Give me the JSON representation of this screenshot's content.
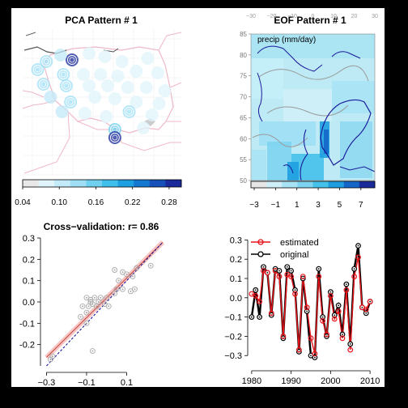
{
  "panels": {
    "pca": {
      "title": "PCA Pattern # 1",
      "colorbar_ticks": [
        "0.04",
        "0.10",
        "0.16",
        "0.22",
        "0.28"
      ],
      "colorbar_colors": [
        "#e8e8e8",
        "#e0f4fb",
        "#c2eaf8",
        "#9fdff5",
        "#6fd0f0",
        "#3fbfea",
        "#1e9fe0",
        "#1478d0",
        "#1650b8",
        "#1a2a9a"
      ]
    },
    "eof": {
      "title": "EOF Pattern # 1",
      "field_label": "precip (mm/day)",
      "lat_ticks": [
        "85",
        "80",
        "75",
        "70",
        "65",
        "60",
        "55",
        "50"
      ],
      "lon_ticks_top": [
        "−30",
        "−20",
        "−10",
        "0",
        "10",
        "20",
        "30"
      ],
      "colorbar_ticks": [
        "−3",
        "−1",
        "1",
        "3",
        "5",
        "7"
      ],
      "colorbar_colors": [
        "#e6e6e6",
        "#cfeff8",
        "#a8e3f5",
        "#7ed4f0",
        "#45c1ea",
        "#1e9ee0",
        "#1466c8",
        "#1a2a9a"
      ]
    },
    "cv": {
      "title": "Cross−validation: r= 0.86"
    },
    "ts": {
      "legend_estimated": "estimated",
      "legend_original": "original"
    }
  },
  "colors": {
    "estimated": "#e8141a",
    "original": "#000000",
    "scatter_point": "#a8a8a8",
    "fit_line": "#f4a0a0",
    "border_pink": "#f0b8c8",
    "coast_blue": "#1a1a9a"
  },
  "chart_data": [
    {
      "type": "scatter",
      "panel": "pca",
      "title": "PCA Pattern # 1",
      "description_type": "map with station loadings",
      "colorbar_range": [
        0.04,
        0.3
      ],
      "colorbar_ticks": [
        0.04,
        0.1,
        0.16,
        0.22,
        0.28
      ],
      "stations": [
        {
          "x": 17,
          "y": 53.9,
          "value": 0.29
        },
        {
          "x": 15.2,
          "y": 53.8,
          "value": 0.12
        },
        {
          "x": 16.2,
          "y": 54.2,
          "value": 0.1
        },
        {
          "x": 18.2,
          "y": 54.3,
          "value": 0.09
        },
        {
          "x": 19.3,
          "y": 54.1,
          "value": 0.08
        },
        {
          "x": 20.5,
          "y": 53.8,
          "value": 0.08
        },
        {
          "x": 22.3,
          "y": 54.0,
          "value": 0.07
        },
        {
          "x": 14.6,
          "y": 53.3,
          "value": 0.13
        },
        {
          "x": 16.4,
          "y": 53.0,
          "value": 0.12
        },
        {
          "x": 17.8,
          "y": 53.0,
          "value": 0.08
        },
        {
          "x": 19.0,
          "y": 53.0,
          "value": 0.08
        },
        {
          "x": 20.2,
          "y": 52.9,
          "value": 0.07
        },
        {
          "x": 21.5,
          "y": 53.2,
          "value": 0.08
        },
        {
          "x": 23.0,
          "y": 53.1,
          "value": 0.07
        },
        {
          "x": 15.0,
          "y": 52.4,
          "value": 0.12
        },
        {
          "x": 16.6,
          "y": 52.3,
          "value": 0.12
        },
        {
          "x": 18.2,
          "y": 52.3,
          "value": 0.08
        },
        {
          "x": 19.5,
          "y": 52.3,
          "value": 0.07
        },
        {
          "x": 20.9,
          "y": 52.2,
          "value": 0.08
        },
        {
          "x": 22.2,
          "y": 52.2,
          "value": 0.07
        },
        {
          "x": 23.5,
          "y": 52.0,
          "value": 0.07
        },
        {
          "x": 15.5,
          "y": 51.6,
          "value": 0.11
        },
        {
          "x": 16.9,
          "y": 51.3,
          "value": 0.12
        },
        {
          "x": 18.6,
          "y": 51.6,
          "value": 0.08
        },
        {
          "x": 20.0,
          "y": 51.5,
          "value": 0.07
        },
        {
          "x": 21.5,
          "y": 51.3,
          "value": 0.07
        },
        {
          "x": 23.1,
          "y": 51.2,
          "value": 0.07
        },
        {
          "x": 16.3,
          "y": 50.7,
          "value": 0.1
        },
        {
          "x": 17.9,
          "y": 50.6,
          "value": 0.09
        },
        {
          "x": 19.4,
          "y": 50.4,
          "value": 0.08
        },
        {
          "x": 21.0,
          "y": 50.7,
          "value": 0.12
        },
        {
          "x": 22.6,
          "y": 50.5,
          "value": 0.07
        },
        {
          "x": 20.0,
          "y": 49.6,
          "value": 0.15
        },
        {
          "x": 22.0,
          "y": 49.7,
          "value": 0.08
        },
        {
          "x": 20.0,
          "y": 49.1,
          "value": 0.3
        }
      ]
    },
    {
      "type": "heatmap",
      "panel": "eof",
      "title": "EOF Pattern # 1",
      "field": "precip (mm/day)",
      "ylim": [
        50,
        85
      ],
      "xlim": [
        -30,
        30
      ],
      "colorbar_range": [
        -3,
        8
      ],
      "colorbar_ticks": [
        -3,
        -1,
        1,
        3,
        5,
        7
      ]
    },
    {
      "type": "scatter",
      "panel": "cv",
      "title": "Cross−validation: r= 0.86",
      "xlim": [
        -0.33,
        0.3
      ],
      "ylim": [
        -0.3,
        0.3
      ],
      "x_ticks": [
        -0.3,
        -0.1,
        0.1
      ],
      "y_ticks": [
        -0.2,
        -0.1,
        0.0,
        0.1,
        0.2,
        0.3
      ],
      "points": [
        {
          "x": -0.27,
          "y": -0.255
        },
        {
          "x": -0.28,
          "y": -0.27
        },
        {
          "x": -0.07,
          "y": -0.23
        },
        {
          "x": -0.13,
          "y": -0.07
        },
        {
          "x": -0.1,
          "y": -0.1
        },
        {
          "x": -0.1,
          "y": -0.05
        },
        {
          "x": -0.09,
          "y": -0.02
        },
        {
          "x": -0.07,
          "y": -0.01
        },
        {
          "x": -0.12,
          "y": -0.02
        },
        {
          "x": -0.08,
          "y": 0.0
        },
        {
          "x": -0.05,
          "y": -0.02
        },
        {
          "x": -0.04,
          "y": 0.0
        },
        {
          "x": -0.03,
          "y": 0.02
        },
        {
          "x": -0.1,
          "y": 0.02
        },
        {
          "x": -0.08,
          "y": 0.01
        },
        {
          "x": -0.06,
          "y": 0.02
        },
        {
          "x": -0.01,
          "y": -0.01
        },
        {
          "x": 0.01,
          "y": -0.02
        },
        {
          "x": 0.0,
          "y": 0.02
        },
        {
          "x": 0.04,
          "y": 0.04
        },
        {
          "x": 0.05,
          "y": 0.06
        },
        {
          "x": 0.08,
          "y": 0.06
        },
        {
          "x": 0.12,
          "y": 0.05
        },
        {
          "x": 0.14,
          "y": 0.06
        },
        {
          "x": 0.06,
          "y": 0.1
        },
        {
          "x": 0.04,
          "y": 0.15
        },
        {
          "x": 0.13,
          "y": 0.12
        },
        {
          "x": 0.15,
          "y": 0.16
        },
        {
          "x": 0.22,
          "y": 0.17
        },
        {
          "x": 0.1,
          "y": 0.13
        },
        {
          "x": 0.08,
          "y": 0.14
        }
      ],
      "fit_line": [
        [
          -0.3,
          -0.26
        ],
        [
          0.28,
          0.28
        ]
      ],
      "identity_line": [
        [
          -0.3,
          -0.3
        ],
        [
          0.28,
          0.28
        ]
      ]
    },
    {
      "type": "line",
      "panel": "ts",
      "xlim": [
        1979,
        2011
      ],
      "ylim": [
        -0.32,
        0.31
      ],
      "x_ticks": [
        1980,
        1990,
        2000,
        2010
      ],
      "y_ticks": [
        -0.3,
        -0.2,
        -0.1,
        0.0,
        0.1,
        0.2,
        0.3
      ],
      "legend": "top-left",
      "x": [
        1980,
        1981,
        1982,
        1983,
        1984,
        1985,
        1986,
        1987,
        1988,
        1989,
        1990,
        1991,
        1992,
        1993,
        1994,
        1995,
        1996,
        1997,
        1998,
        1999,
        2000,
        2001,
        2002,
        2003,
        2004,
        2005,
        2006,
        2007,
        2008,
        2009,
        2010
      ],
      "series": [
        {
          "name": "estimated",
          "values": [
            0.02,
            0.01,
            -0.02,
            0.14,
            0.13,
            -0.08,
            0.14,
            0.11,
            -0.2,
            0.12,
            0.11,
            0.02,
            -0.27,
            0.11,
            -0.05,
            -0.21,
            -0.29,
            0.11,
            -0.12,
            -0.19,
            0.01,
            -0.11,
            -0.07,
            -0.21,
            0.04,
            -0.27,
            0.11,
            0.21,
            -0.05,
            -0.06,
            -0.02
          ]
        },
        {
          "name": "original",
          "values": [
            -0.1,
            0.04,
            -0.1,
            0.16,
            0.13,
            -0.09,
            0.15,
            0.14,
            -0.21,
            0.16,
            0.14,
            0.04,
            -0.28,
            0.1,
            -0.07,
            -0.3,
            -0.31,
            0.15,
            -0.1,
            -0.2,
            0.03,
            -0.09,
            -0.04,
            -0.19,
            0.07,
            -0.24,
            0.15,
            0.27,
            -0.05,
            -0.08,
            -0.02
          ]
        }
      ]
    }
  ]
}
